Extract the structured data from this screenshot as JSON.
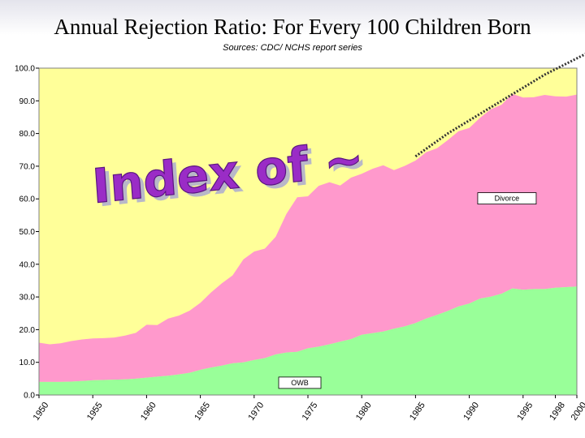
{
  "title": "Annual Rejection Ratio: For Every 100 Children Born",
  "subtitle": "Sources: CDC/ NCHS report series",
  "overlay_text": "Index of ~",
  "colors": {
    "background_area": "#FFFF99",
    "divorce_area": "#FF99CC",
    "owb_area": "#99FF99",
    "projection_line": "#333333"
  },
  "chart_data": {
    "type": "area",
    "stacked": true,
    "x": [
      1950,
      1951,
      1952,
      1953,
      1954,
      1955,
      1956,
      1957,
      1958,
      1959,
      1960,
      1961,
      1962,
      1963,
      1964,
      1965,
      1966,
      1967,
      1968,
      1969,
      1970,
      1971,
      1972,
      1973,
      1974,
      1975,
      1976,
      1977,
      1978,
      1979,
      1980,
      1981,
      1982,
      1983,
      1984,
      1985,
      1986,
      1987,
      1988,
      1989,
      1990,
      1991,
      1992,
      1993,
      1994,
      1995,
      1996,
      1997,
      1998,
      1999,
      2000
    ],
    "series": [
      {
        "name": "OWB",
        "values": [
          4.0,
          4.0,
          4.0,
          4.1,
          4.3,
          4.5,
          4.6,
          4.7,
          4.8,
          5.0,
          5.3,
          5.6,
          5.9,
          6.3,
          6.8,
          7.7,
          8.4,
          9.0,
          9.7,
          10.0,
          10.7,
          11.3,
          12.4,
          13.0,
          13.2,
          14.3,
          14.8,
          15.5,
          16.3,
          17.1,
          18.4,
          18.9,
          19.4,
          20.3,
          21.0,
          22.0,
          23.4,
          24.5,
          25.7,
          27.1,
          28.0,
          29.5,
          30.1,
          31.0,
          32.6,
          32.2,
          32.4,
          32.4,
          32.8,
          33.0,
          33.2
        ]
      },
      {
        "name": "Divorce",
        "values": [
          12.0,
          11.5,
          11.8,
          12.4,
          12.7,
          12.8,
          12.8,
          12.9,
          13.4,
          14.0,
          16.2,
          15.8,
          17.5,
          18.0,
          19.0,
          20.5,
          23.0,
          25.2,
          26.9,
          31.5,
          33.2,
          33.5,
          36.0,
          42.4,
          47.3,
          46.5,
          49.2,
          49.6,
          47.8,
          49.4,
          49.3,
          50.3,
          50.9,
          48.5,
          49.1,
          49.7,
          50.9,
          51.0,
          52.3,
          53.6,
          53.7,
          55.3,
          57.3,
          57.8,
          59.5,
          58.8,
          58.7,
          59.4,
          58.6,
          58.3,
          58.7
        ]
      }
    ],
    "series_labels": [
      "Divorce",
      "OWB"
    ],
    "projection": {
      "x": [
        1985,
        1988,
        1991,
        1994,
        1997,
        2000,
        2003
      ],
      "y": [
        73,
        80,
        86,
        92,
        98,
        103,
        108
      ]
    },
    "x_ticks": [
      "1950",
      "1955",
      "1960",
      "1965",
      "1970",
      "1975",
      "1980",
      "1985",
      "1990",
      "1995",
      "1998",
      "2000"
    ],
    "y_ticks": [
      "0.0",
      "10.0",
      "20.0",
      "30.0",
      "40.0",
      "50.0",
      "60.0",
      "70.0",
      "80.0",
      "90.0",
      "100.0"
    ],
    "ylim": [
      0,
      100
    ],
    "xlim": [
      1950,
      2000
    ]
  }
}
